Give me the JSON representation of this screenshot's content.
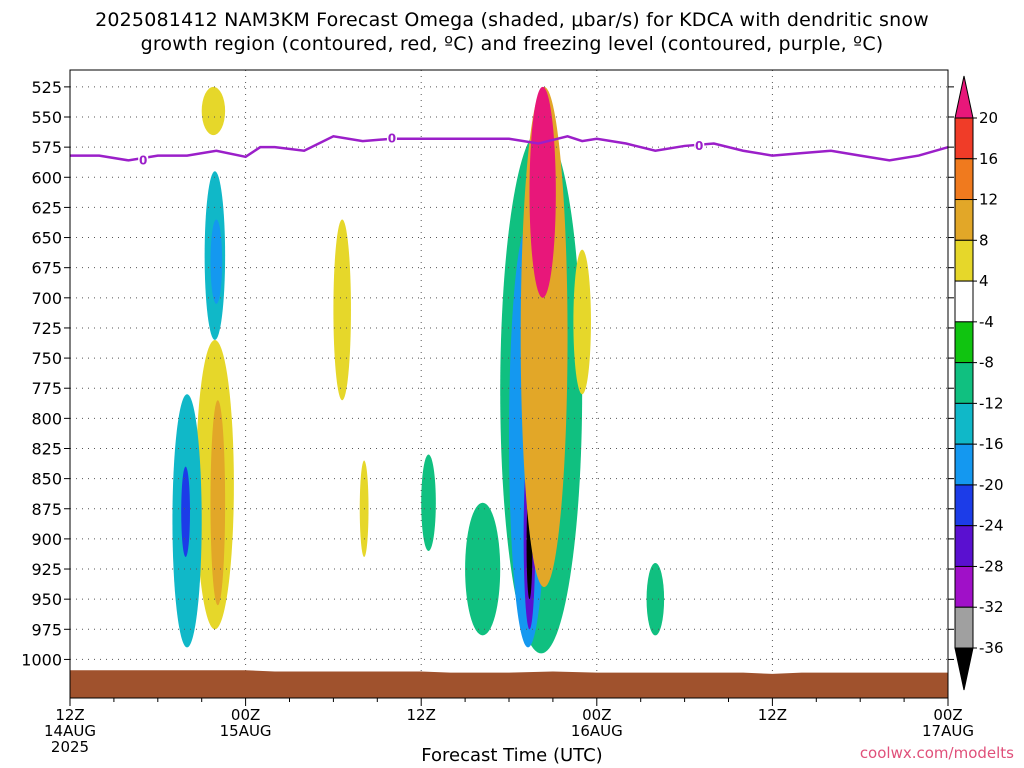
{
  "title_line1": "2025081412 NAM3KM Forecast Omega (shaded, μbar/s) for KDCA with dendritic snow",
  "title_line2": "growth region (contoured, red, ºC) and freezing level (contoured, purple, ºC)",
  "xlabel": "Forecast Time (UTC)",
  "credit": "coolwx.com/modelts",
  "colors": {
    "freezing_line": "#9b1fc9",
    "terrain": "#a0522d",
    "grid": "#555555"
  },
  "chart_data": {
    "type": "heatmap",
    "title": "2025081412 NAM3KM Forecast Omega (shaded, μbar/s) for KDCA with dendritic snow growth region (contoured, red, ºC) and freezing level (contoured, purple, ºC)",
    "xlabel": "Forecast Time (UTC)",
    "ylabel": "",
    "x_range_hours": [
      0,
      60
    ],
    "y_range_hpa": [
      525,
      1000
    ],
    "y_ticks": [
      525,
      550,
      575,
      600,
      625,
      650,
      675,
      700,
      725,
      750,
      775,
      800,
      825,
      850,
      875,
      900,
      925,
      950,
      975,
      1000
    ],
    "x_ticks": [
      {
        "hour": 0,
        "label": "12Z",
        "date": "14AUG",
        "year": "2025"
      },
      {
        "hour": 12,
        "label": "00Z",
        "date": "15AUG",
        "year": ""
      },
      {
        "hour": 24,
        "label": "12Z",
        "date": "",
        "year": ""
      },
      {
        "hour": 36,
        "label": "00Z",
        "date": "16AUG",
        "year": ""
      },
      {
        "hour": 48,
        "label": "12Z",
        "date": "",
        "year": ""
      },
      {
        "hour": 60,
        "label": "00Z",
        "date": "17AUG",
        "year": ""
      }
    ],
    "colorbar": {
      "labels": [
        "20",
        "16",
        "12",
        "8",
        "4",
        "-4",
        "-8",
        "-12",
        "-16",
        "-20",
        "-24",
        "-28",
        "-32",
        "-36"
      ],
      "colors": [
        "#e8177a",
        "#f03c28",
        "#f07a1e",
        "#e2a728",
        "#e6d72a",
        "#ffffff",
        "#10c410",
        "#10c080",
        "#10b8c8",
        "#1498f0",
        "#1c3ce8",
        "#5a10d0",
        "#a010c8",
        "#a0a0a0",
        "#000000"
      ]
    },
    "freezing_level": {
      "label": "0",
      "hours": [
        0,
        2,
        4,
        6,
        8,
        10,
        12,
        13,
        14,
        16,
        18,
        20,
        22,
        24,
        26,
        28,
        30,
        32,
        34,
        35,
        36,
        38,
        40,
        42,
        44,
        46,
        48,
        50,
        52,
        54,
        56,
        58,
        60
      ],
      "pressure": [
        582,
        582,
        586,
        582,
        582,
        578,
        583,
        575,
        575,
        578,
        566,
        570,
        568,
        568,
        568,
        568,
        568,
        572,
        566,
        570,
        568,
        572,
        578,
        574,
        572,
        578,
        582,
        580,
        578,
        582,
        586,
        582,
        575
      ]
    },
    "omega_regions": [
      {
        "value": 6,
        "hour_range": [
          9.0,
          10.6
        ],
        "p_range": [
          525,
          565
        ]
      },
      {
        "value": -12,
        "hour_range": [
          9.2,
          10.6
        ],
        "p_range": [
          595,
          735
        ]
      },
      {
        "value": -16,
        "hour_range": [
          9.6,
          10.4
        ],
        "p_range": [
          635,
          705
        ]
      },
      {
        "value": 6,
        "hour_range": [
          8.6,
          11.2
        ],
        "p_range": [
          735,
          975
        ]
      },
      {
        "value": 10,
        "hour_range": [
          9.6,
          10.6
        ],
        "p_range": [
          785,
          955
        ]
      },
      {
        "value": -12,
        "hour_range": [
          7.0,
          9.0
        ],
        "p_range": [
          780,
          990
        ]
      },
      {
        "value": -20,
        "hour_range": [
          7.6,
          8.2
        ],
        "p_range": [
          840,
          915
        ]
      },
      {
        "value": 6,
        "hour_range": [
          18.0,
          19.2
        ],
        "p_range": [
          635,
          785
        ]
      },
      {
        "value": 6,
        "hour_range": [
          19.8,
          20.4
        ],
        "p_range": [
          835,
          915
        ]
      },
      {
        "value": -8,
        "hour_range": [
          24.0,
          25.0
        ],
        "p_range": [
          830,
          910
        ]
      },
      {
        "value": -8,
        "hour_range": [
          27.0,
          29.4
        ],
        "p_range": [
          870,
          980
        ]
      },
      {
        "value": -8,
        "hour_range": [
          29.4,
          35.0
        ],
        "p_range": [
          560,
          995
        ]
      },
      {
        "value": -16,
        "hour_range": [
          30.0,
          32.6
        ],
        "p_range": [
          640,
          990
        ]
      },
      {
        "value": -24,
        "hour_range": [
          31.0,
          31.8
        ],
        "p_range": [
          820,
          975
        ]
      },
      {
        "value": -36,
        "hour_range": [
          31.2,
          31.6
        ],
        "p_range": [
          860,
          950
        ]
      },
      {
        "value": 10,
        "hour_range": [
          30.8,
          34.0
        ],
        "p_range": [
          525,
          940
        ]
      },
      {
        "value": 20,
        "hour_range": [
          31.4,
          33.2
        ],
        "p_range": [
          525,
          700
        ]
      },
      {
        "value": 6,
        "hour_range": [
          34.4,
          35.6
        ],
        "p_range": [
          660,
          780
        ]
      },
      {
        "value": -8,
        "hour_range": [
          39.4,
          40.6
        ],
        "p_range": [
          920,
          980
        ]
      }
    ]
  }
}
